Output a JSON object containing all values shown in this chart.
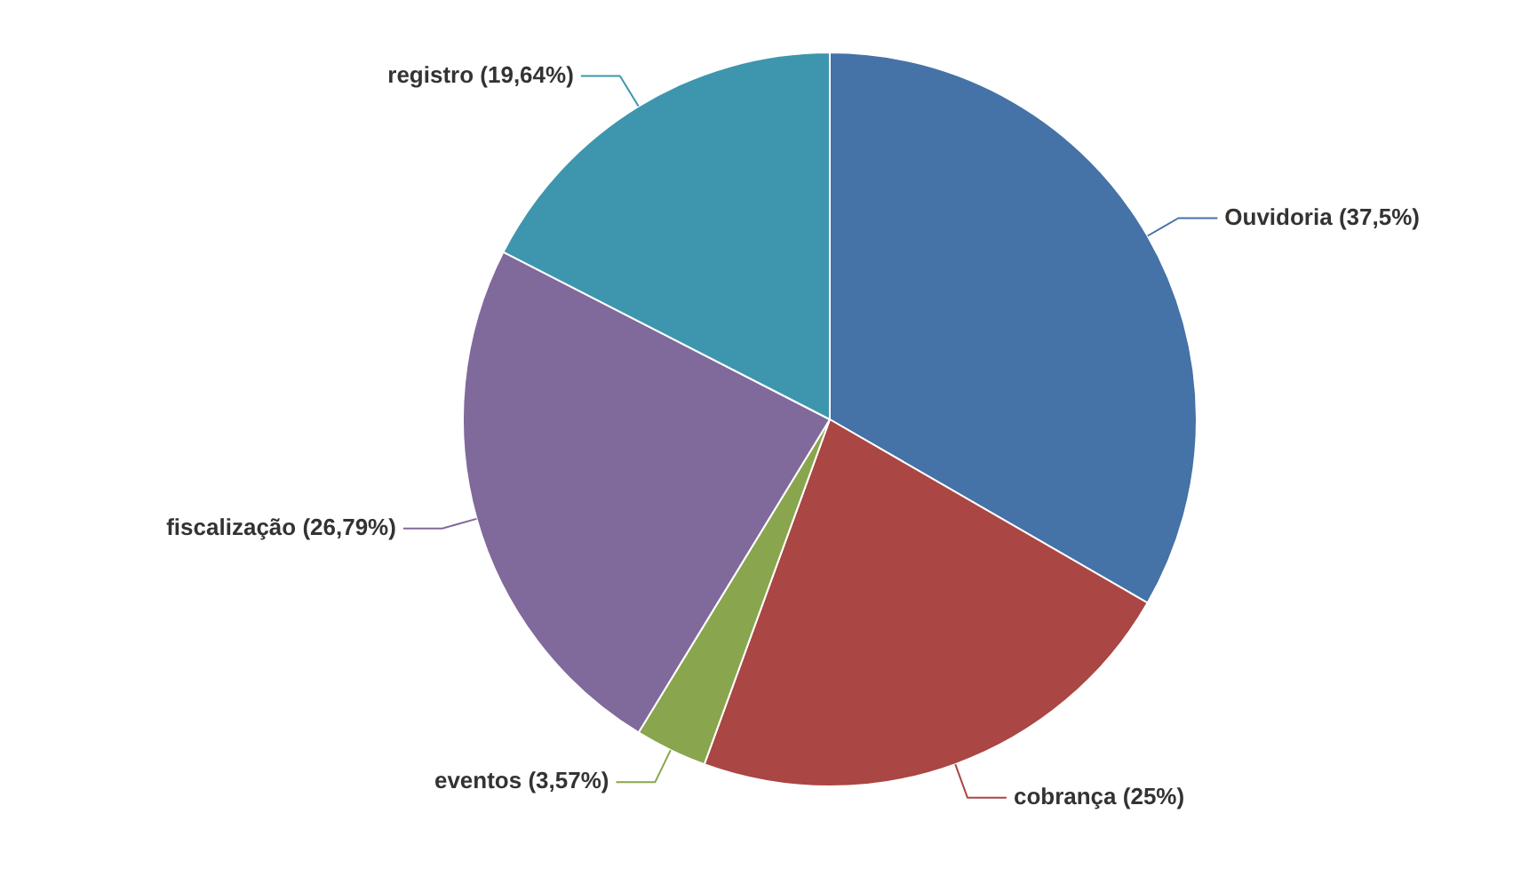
{
  "chart_data": {
    "type": "pie",
    "categories": [
      "Ouvidoria",
      "cobrança",
      "eventos",
      "fiscalização",
      "registro"
    ],
    "values": [
      37.5,
      25,
      3.57,
      26.79,
      19.64
    ],
    "value_labels": [
      "(37,5%)",
      "(25%)",
      "(3,57%)",
      "(26,79%)",
      "(19,64%)"
    ],
    "colors": [
      "#4572a7",
      "#aa4643",
      "#89a54e",
      "#80699b",
      "#3d96ae"
    ],
    "legend": false
  }
}
